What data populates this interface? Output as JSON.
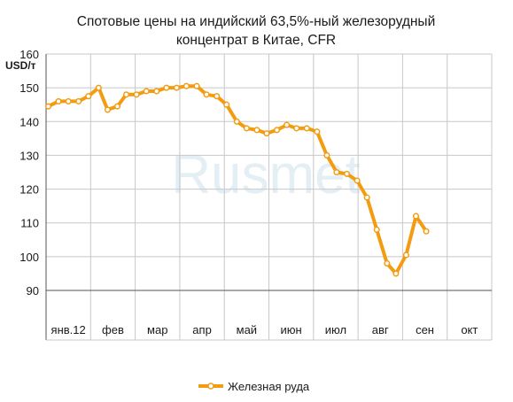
{
  "chart_data": {
    "type": "line",
    "title_line1": "Спотовые цены на индийский  63,5%-ный железорудный",
    "title_line2": "концентрат в Китае, CFR",
    "ylabel": "USD/т",
    "ylim": [
      90,
      160
    ],
    "yticks": [
      90,
      100,
      110,
      120,
      130,
      140,
      150,
      160
    ],
    "months": [
      "янв.12",
      "фев",
      "мар",
      "апр",
      "май",
      "июн",
      "июл",
      "авг",
      "сен",
      "окт"
    ],
    "x_range": [
      0,
      10
    ],
    "grid": true,
    "legend_position": "bottom-center",
    "watermark": "Rusmet",
    "series": [
      {
        "name": "Железная руда",
        "color": "#f39c12",
        "x": [
          0.05,
          0.28,
          0.5,
          0.73,
          0.95,
          1.18,
          1.38,
          1.6,
          1.8,
          2.03,
          2.25,
          2.48,
          2.7,
          2.93,
          3.15,
          3.38,
          3.6,
          3.83,
          4.05,
          4.28,
          4.5,
          4.73,
          4.95,
          5.18,
          5.4,
          5.62,
          5.85,
          6.08,
          6.3,
          6.52,
          6.75,
          6.98,
          7.2,
          7.42,
          7.65,
          7.85,
          8.08,
          8.3,
          8.53,
          8.75
        ],
        "y": [
          144.5,
          146,
          146,
          146,
          147.5,
          150,
          143.5,
          144.5,
          148,
          148,
          149,
          149,
          150,
          150,
          150.5,
          150.5,
          148,
          147.5,
          145,
          140,
          138,
          137.5,
          136.5,
          137.5,
          139,
          138,
          138,
          137,
          130,
          125,
          124.5,
          122.5,
          117.5,
          108,
          98,
          95,
          100.5,
          112,
          107.5,
          null
        ]
      }
    ]
  }
}
